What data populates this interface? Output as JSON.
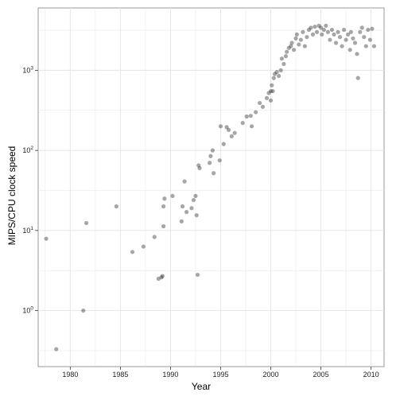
{
  "chart_data": {
    "type": "scatter",
    "title": "",
    "xlabel": "Year",
    "ylabel": "MIPS/CPU clock speed",
    "y_scale": "log10",
    "grid": true,
    "background": "#ffffff",
    "grid_color": "#e5e5e5",
    "point_color": "#000000",
    "point_opacity": 0.35,
    "xlim": [
      1976.8,
      2011.3
    ],
    "ylim": [
      0.2,
      6000
    ],
    "x_ticks": [
      1980,
      1985,
      1990,
      1995,
      2000,
      2005,
      2010
    ],
    "x_tick_labels": [
      "1980",
      "1985",
      "1990",
      "1995",
      "2000",
      "2005",
      "2010"
    ],
    "y_ticks": [
      1,
      10,
      100,
      1000
    ],
    "y_tick_labels": [
      "10^0",
      "10^1",
      "10^2",
      "10^3"
    ],
    "points": [
      [
        1977.6,
        7.9
      ],
      [
        1978.6,
        0.33
      ],
      [
        1981.3,
        1.0
      ],
      [
        1981.6,
        12.4
      ],
      [
        1984.6,
        20.0
      ],
      [
        1986.2,
        5.4
      ],
      [
        1987.3,
        6.3
      ],
      [
        1988.4,
        8.3
      ],
      [
        1988.8,
        2.5
      ],
      [
        1989.1,
        2.6
      ],
      [
        1989.2,
        2.7
      ],
      [
        1989.3,
        11.3
      ],
      [
        1989.3,
        20.0
      ],
      [
        1989.4,
        25.0
      ],
      [
        1990.2,
        27.0
      ],
      [
        1991.1,
        13.0
      ],
      [
        1991.2,
        20.0
      ],
      [
        1991.4,
        41.0
      ],
      [
        1991.6,
        17.0
      ],
      [
        1992.1,
        19.0
      ],
      [
        1992.3,
        24.0
      ],
      [
        1992.5,
        27.0
      ],
      [
        1992.6,
        15.5
      ],
      [
        1992.7,
        2.8
      ],
      [
        1992.8,
        65.0
      ],
      [
        1992.9,
        60.0
      ],
      [
        1993.9,
        70.0
      ],
      [
        1994.0,
        85.0
      ],
      [
        1994.2,
        100.0
      ],
      [
        1994.3,
        52.0
      ],
      [
        1994.9,
        75.0
      ],
      [
        1995.0,
        200.0
      ],
      [
        1995.3,
        120.0
      ],
      [
        1995.6,
        195.0
      ],
      [
        1995.8,
        180.0
      ],
      [
        1996.1,
        150.0
      ],
      [
        1996.4,
        165.0
      ],
      [
        1997.2,
        220.0
      ],
      [
        1997.6,
        265.0
      ],
      [
        1998.0,
        270.0
      ],
      [
        1998.1,
        200.0
      ],
      [
        1998.5,
        300.0
      ],
      [
        1998.9,
        390.0
      ],
      [
        1999.2,
        350.0
      ],
      [
        1999.6,
        450.0
      ],
      [
        1999.8,
        520.0
      ],
      [
        2000.0,
        550.0
      ],
      [
        2000.0,
        420.0
      ],
      [
        2000.1,
        650.0
      ],
      [
        2000.2,
        550.0
      ],
      [
        2000.3,
        800.0
      ],
      [
        2000.4,
        900.0
      ],
      [
        2000.6,
        950.0
      ],
      [
        2000.8,
        850.0
      ],
      [
        2001.0,
        1000.0
      ],
      [
        2001.1,
        1400.0
      ],
      [
        2001.3,
        1200.0
      ],
      [
        2001.5,
        1500.0
      ],
      [
        2001.6,
        1700.0
      ],
      [
        2001.8,
        1900.0
      ],
      [
        2002.0,
        2000.0
      ],
      [
        2002.1,
        2200.0
      ],
      [
        2002.3,
        1800.0
      ],
      [
        2002.5,
        2500.0
      ],
      [
        2002.6,
        2800.0
      ],
      [
        2002.8,
        2100.0
      ],
      [
        2003.0,
        2400.0
      ],
      [
        2003.2,
        3000.0
      ],
      [
        2003.4,
        2000.0
      ],
      [
        2003.6,
        2600.0
      ],
      [
        2003.8,
        3200.0
      ],
      [
        2004.0,
        3400.0
      ],
      [
        2004.2,
        2800.0
      ],
      [
        2004.4,
        3500.0
      ],
      [
        2004.6,
        3000.0
      ],
      [
        2004.8,
        3600.0
      ],
      [
        2005.0,
        3400.0
      ],
      [
        2005.1,
        2800.0
      ],
      [
        2005.3,
        3200.0
      ],
      [
        2005.5,
        3600.0
      ],
      [
        2005.7,
        3000.0
      ],
      [
        2005.9,
        2400.0
      ],
      [
        2006.1,
        3200.0
      ],
      [
        2006.3,
        2800.0
      ],
      [
        2006.5,
        2200.0
      ],
      [
        2006.7,
        3000.0
      ],
      [
        2006.9,
        2600.0
      ],
      [
        2007.1,
        2000.0
      ],
      [
        2007.3,
        3200.0
      ],
      [
        2007.5,
        2400.0
      ],
      [
        2007.7,
        2800.0
      ],
      [
        2007.9,
        1800.0
      ],
      [
        2008.0,
        3000.0
      ],
      [
        2008.2,
        2500.0
      ],
      [
        2008.4,
        2200.0
      ],
      [
        2008.6,
        1600.0
      ],
      [
        2008.7,
        800.0
      ],
      [
        2008.9,
        3000.0
      ],
      [
        2009.1,
        3400.0
      ],
      [
        2009.3,
        2600.0
      ],
      [
        2009.5,
        2000.0
      ],
      [
        2009.7,
        3200.0
      ],
      [
        2009.9,
        2400.0
      ],
      [
        2010.1,
        3300.0
      ],
      [
        2010.3,
        2000.0
      ]
    ]
  }
}
